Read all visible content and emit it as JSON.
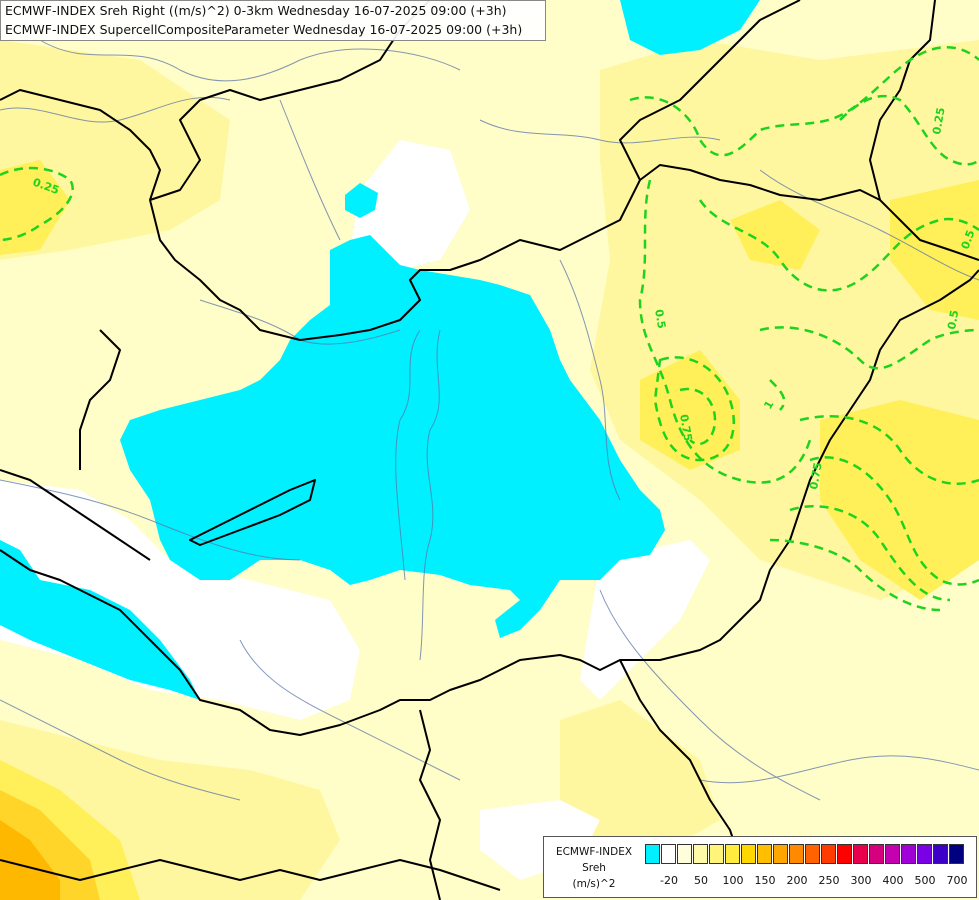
{
  "titles": {
    "line1": "ECMWF-INDEX Sreh Right ((m/s)^2) 0-3km Wednesday 16-07-2025 09:00 (+3h)",
    "line2": "ECMWF-INDEX SupercellCompositeParameter Wednesday 16-07-2025 09:00 (+3h)"
  },
  "legend": {
    "title1": "ECMWF-INDEX",
    "title2": "Sreh",
    "title3": "(m/s)^2",
    "colors": [
      "#00f0ff",
      "#ffffff",
      "#fffedc",
      "#fffaa8",
      "#fff57a",
      "#ffec3c",
      "#ffd700",
      "#ffbe00",
      "#ffa500",
      "#ff8a00",
      "#ff6200",
      "#ff3c00",
      "#ff0000",
      "#e8004c",
      "#d6007e",
      "#c400b0",
      "#a000d8",
      "#7a00e6",
      "#3c00c8",
      "#000080"
    ],
    "ticks": [
      "-20",
      "50",
      "100",
      "150",
      "200",
      "250",
      "300",
      "400",
      "500",
      "700"
    ]
  },
  "contours": {
    "labels": [
      "0.25",
      "0.25",
      "0.5",
      "0.5",
      "0.75",
      "0.75",
      "1",
      "0.5"
    ],
    "color": "#1ed31e"
  }
}
